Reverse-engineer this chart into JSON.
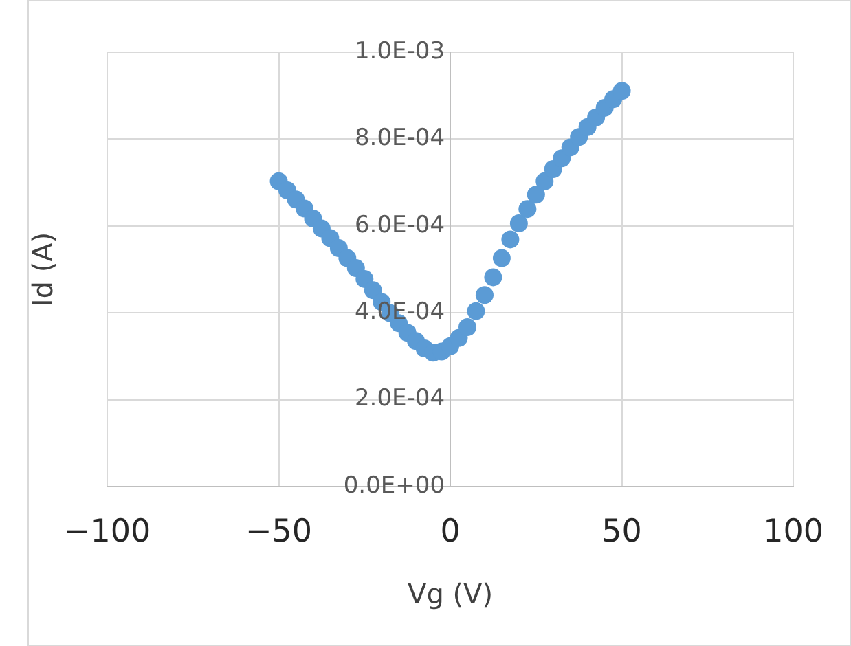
{
  "chart_data": {
    "type": "scatter",
    "xlabel": "Vg (V)",
    "ylabel": "Id (A)",
    "xlim": [
      -100,
      100
    ],
    "xticks": [
      {
        "value": -100,
        "label": "−100"
      },
      {
        "value": -50,
        "label": "−50"
      },
      0,
      50,
      100
    ],
    "ylim": [
      0,
      0.001
    ],
    "yticks": [
      {
        "value": 0,
        "label": "0.0E+00"
      },
      {
        "value": 0.0002,
        "label": "2.0E-04"
      },
      {
        "value": 0.0004,
        "label": "4.0E-04"
      },
      {
        "value": 0.0006,
        "label": "6.0E-04"
      },
      {
        "value": 0.0008,
        "label": "8.0E-04"
      },
      {
        "value": 0.001,
        "label": "1.0E-03"
      }
    ],
    "grid": true,
    "legend": false,
    "marker": "circle",
    "series": [
      {
        "color": "#5b9bd5",
        "x": [
          -50,
          -47.5,
          -45,
          -42.5,
          -40,
          -37.5,
          -35,
          -32.5,
          -30,
          -27.5,
          -25,
          -22.5,
          -20,
          -17.5,
          -15,
          -12.5,
          -10,
          -7.5,
          -5,
          -2.5,
          0,
          2.5,
          5,
          7.5,
          10,
          12.5,
          15,
          17.5,
          20,
          22.5,
          25,
          27.5,
          30,
          32.5,
          35,
          37.5,
          40,
          42.5,
          45,
          47.5,
          50
        ],
        "values": [
          0.000703,
          0.000682,
          0.000661,
          0.00064,
          0.000617,
          0.000594,
          0.000572,
          0.000549,
          0.000526,
          0.000503,
          0.000478,
          0.000452,
          0.000425,
          0.000399,
          0.000376,
          0.000354,
          0.000335,
          0.000318,
          0.000308,
          0.000311,
          0.000323,
          0.000342,
          0.000367,
          0.000404,
          0.000441,
          0.000482,
          0.000526,
          0.000569,
          0.000606,
          0.000639,
          0.000672,
          0.000703,
          0.000731,
          0.000756,
          0.000781,
          0.000805,
          0.000828,
          0.00085,
          0.000872,
          0.000892,
          0.000911
        ]
      }
    ]
  }
}
